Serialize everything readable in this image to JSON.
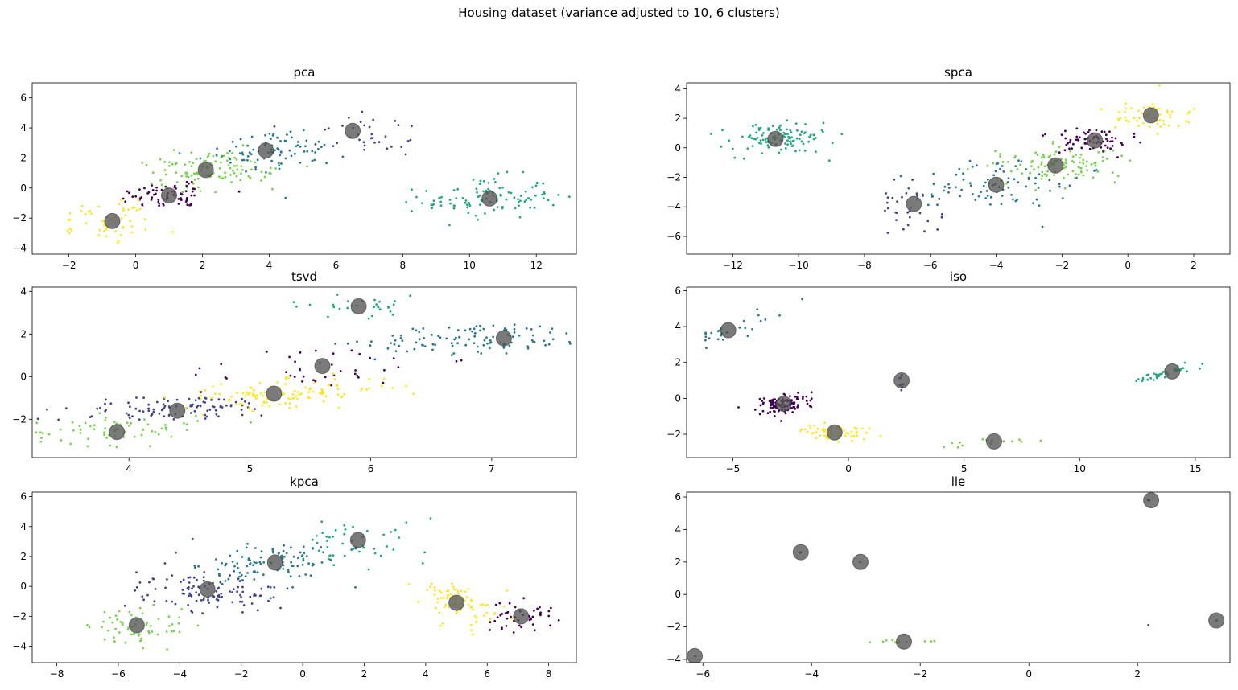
{
  "figure": {
    "suptitle": "Housing dataset (variance adjusted to 10, 6 clusters)"
  },
  "colors": {
    "c0": "#440154",
    "c1": "#414487",
    "c2": "#2a788e",
    "c3": "#22a884",
    "c4": "#7ad151",
    "c5": "#fde725",
    "centroid": "#555555"
  },
  "chart_data": [
    {
      "type": "scatter",
      "title": "pca",
      "xlim": [
        -3.1,
        13.2
      ],
      "ylim": [
        -4.4,
        7.0
      ],
      "xticks": [
        -2,
        0,
        2,
        4,
        6,
        8,
        10,
        12
      ],
      "yticks": [
        -4,
        -2,
        0,
        2,
        4,
        6
      ],
      "clusters": [
        {
          "color": "c0",
          "center": [
            1.0,
            -0.5
          ],
          "spread": [
            0.75,
            0.45
          ],
          "n": 70,
          "rot": 0.4
        },
        {
          "color": "c1",
          "center": [
            6.8,
            3.6
          ],
          "spread": [
            0.9,
            0.9
          ],
          "n": 35,
          "rot": 0.3
        },
        {
          "color": "c2",
          "center": [
            4.2,
            2.5
          ],
          "spread": [
            1.1,
            0.7
          ],
          "n": 85,
          "rot": 0.45
        },
        {
          "color": "c3",
          "center": [
            10.6,
            -0.7
          ],
          "spread": [
            1.0,
            0.7
          ],
          "n": 110,
          "rot": 0.15
        },
        {
          "color": "c4",
          "center": [
            2.2,
            1.2
          ],
          "spread": [
            1.0,
            0.6
          ],
          "n": 110,
          "rot": 0.45
        },
        {
          "color": "c5",
          "center": [
            -0.7,
            -2.2
          ],
          "spread": [
            0.7,
            0.55
          ],
          "n": 55,
          "rot": 0.4
        }
      ],
      "centroids": [
        [
          1.0,
          -0.5
        ],
        [
          6.5,
          3.8
        ],
        [
          3.9,
          2.5
        ],
        [
          10.6,
          -0.7
        ],
        [
          2.1,
          1.2
        ],
        [
          -0.7,
          -2.2
        ]
      ]
    },
    {
      "type": "scatter",
      "title": "spca",
      "xlim": [
        -13.4,
        3.1
      ],
      "ylim": [
        -7.2,
        4.4
      ],
      "xticks": [
        -12,
        -10,
        -8,
        -6,
        -4,
        -2,
        0,
        2
      ],
      "yticks": [
        -6,
        -4,
        -2,
        0,
        2,
        4
      ],
      "clusters": [
        {
          "color": "c0",
          "center": [
            -1.0,
            0.5
          ],
          "spread": [
            0.7,
            0.45
          ],
          "n": 70,
          "rot": 0.4
        },
        {
          "color": "c1",
          "center": [
            -6.6,
            -4.0
          ],
          "spread": [
            0.45,
            0.9
          ],
          "n": 35,
          "rot": 0.1
        },
        {
          "color": "c2",
          "center": [
            -4.0,
            -2.4
          ],
          "spread": [
            1.1,
            0.8
          ],
          "n": 85,
          "rot": 0.45
        },
        {
          "color": "c3",
          "center": [
            -10.6,
            0.6
          ],
          "spread": [
            0.8,
            0.55
          ],
          "n": 110,
          "rot": 0.2
        },
        {
          "color": "c4",
          "center": [
            -2.2,
            -1.2
          ],
          "spread": [
            1.0,
            0.6
          ],
          "n": 110,
          "rot": 0.45
        },
        {
          "color": "c5",
          "center": [
            0.8,
            2.2
          ],
          "spread": [
            0.6,
            0.55
          ],
          "n": 55,
          "rot": 0.3
        }
      ],
      "centroids": [
        [
          -1.0,
          0.5
        ],
        [
          -6.5,
          -3.8
        ],
        [
          -4.0,
          -2.5
        ],
        [
          -10.7,
          0.6
        ],
        [
          -2.2,
          -1.2
        ],
        [
          0.7,
          2.2
        ]
      ]
    },
    {
      "type": "scatter",
      "title": "tsvd",
      "xlim": [
        3.2,
        7.7
      ],
      "ylim": [
        -3.8,
        4.2
      ],
      "xticks": [
        4,
        5,
        6,
        7
      ],
      "yticks": [
        -2,
        0,
        2,
        4
      ],
      "clusters": [
        {
          "color": "c0",
          "center": [
            5.5,
            0.4
          ],
          "spread": [
            0.55,
            0.5
          ],
          "n": 40,
          "rot": 0.2
        },
        {
          "color": "c1",
          "center": [
            4.4,
            -1.5
          ],
          "spread": [
            0.45,
            0.3
          ],
          "n": 100,
          "rot": 0.2
        },
        {
          "color": "c2",
          "center": [
            6.9,
            1.8
          ],
          "spread": [
            0.45,
            0.35
          ],
          "n": 110,
          "rot": 0.1
        },
        {
          "color": "c3",
          "center": [
            5.9,
            3.3
          ],
          "spread": [
            0.3,
            0.25
          ],
          "n": 30,
          "rot": 0.0
        },
        {
          "color": "c4",
          "center": [
            3.9,
            -2.5
          ],
          "spread": [
            0.35,
            0.35
          ],
          "n": 70,
          "rot": 0.1
        },
        {
          "color": "c5",
          "center": [
            5.3,
            -0.8
          ],
          "spread": [
            0.45,
            0.3
          ],
          "n": 110,
          "rot": 0.2
        }
      ],
      "centroids": [
        [
          5.6,
          0.5
        ],
        [
          4.4,
          -1.6
        ],
        [
          7.1,
          1.8
        ],
        [
          5.9,
          3.3
        ],
        [
          3.9,
          -2.6
        ],
        [
          5.2,
          -0.8
        ]
      ]
    },
    {
      "type": "scatter",
      "title": "iso",
      "xlim": [
        -7.0,
        16.5
      ],
      "ylim": [
        -3.3,
        6.2
      ],
      "xticks": [
        -5,
        0,
        5,
        10,
        15
      ],
      "yticks": [
        -2,
        0,
        2,
        4,
        6
      ],
      "clusters": [
        {
          "color": "c0",
          "center": [
            -2.8,
            -0.3
          ],
          "spread": [
            0.5,
            0.3
          ],
          "n": 120,
          "rot": -0.5
        },
        {
          "color": "c1",
          "center": [
            2.3,
            1.0
          ],
          "spread": [
            0.05,
            0.25
          ],
          "n": 10,
          "rot": 0.0
        },
        {
          "color": "c2",
          "center": [
            -5.2,
            3.8
          ],
          "spread": [
            0.4,
            0.9
          ],
          "n": 30,
          "rot": -0.6
        },
        {
          "color": "c3",
          "center": [
            13.8,
            1.4
          ],
          "spread": [
            1.0,
            0.1
          ],
          "n": 40,
          "rot": 0.7
        },
        {
          "color": "c4",
          "center": [
            6.3,
            -2.4
          ],
          "spread": [
            1.4,
            0.1
          ],
          "n": 15,
          "rot": 0.1
        },
        {
          "color": "c5",
          "center": [
            -0.6,
            -1.9
          ],
          "spread": [
            0.8,
            0.2
          ],
          "n": 60,
          "rot": -0.25
        }
      ],
      "centroids": [
        [
          -2.8,
          -0.3
        ],
        [
          2.3,
          1.0
        ],
        [
          -5.2,
          3.8
        ],
        [
          14.0,
          1.5
        ],
        [
          6.3,
          -2.4
        ],
        [
          -0.6,
          -1.9
        ]
      ]
    },
    {
      "type": "scatter",
      "title": "kpca",
      "xlim": [
        -8.8,
        8.9
      ],
      "ylim": [
        -5.1,
        6.3
      ],
      "xticks": [
        -8,
        -6,
        -4,
        -2,
        0,
        2,
        4,
        6,
        8
      ],
      "yticks": [
        -4,
        -2,
        0,
        2,
        4,
        6
      ],
      "clusters": [
        {
          "color": "c0",
          "center": [
            7.0,
            -2.0
          ],
          "spread": [
            0.6,
            0.5
          ],
          "n": 45,
          "rot": 0.1
        },
        {
          "color": "c1",
          "center": [
            -3.2,
            -0.3
          ],
          "spread": [
            1.0,
            0.7
          ],
          "n": 110,
          "rot": 0.45
        },
        {
          "color": "c2",
          "center": [
            -1.0,
            1.5
          ],
          "spread": [
            1.2,
            0.8
          ],
          "n": 110,
          "rot": 0.4
        },
        {
          "color": "c3",
          "center": [
            1.9,
            3.0
          ],
          "spread": [
            1.0,
            0.9
          ],
          "n": 45,
          "rot": 0.3
        },
        {
          "color": "c4",
          "center": [
            -5.4,
            -2.6
          ],
          "spread": [
            0.8,
            0.6
          ],
          "n": 60,
          "rot": 0.35
        },
        {
          "color": "c5",
          "center": [
            5.0,
            -1.1
          ],
          "spread": [
            0.7,
            0.8
          ],
          "n": 80,
          "rot": 0.3
        }
      ],
      "centroids": [
        [
          7.1,
          -2.0
        ],
        [
          -3.1,
          -0.2
        ],
        [
          -0.9,
          1.6
        ],
        [
          1.8,
          3.1
        ],
        [
          -5.4,
          -2.6
        ],
        [
          5.0,
          -1.1
        ]
      ]
    },
    {
      "type": "scatter",
      "title": "lle",
      "xlim": [
        -6.3,
        3.7
      ],
      "ylim": [
        -4.2,
        6.3
      ],
      "xticks": [
        -6,
        -4,
        -2,
        0,
        2
      ],
      "yticks": [
        -4,
        -2,
        0,
        2,
        4,
        6
      ],
      "clusters": [
        {
          "color": "c0",
          "center": [
            2.2,
            5.8
          ],
          "spread": [
            0.01,
            0.01
          ],
          "n": 3,
          "rot": 0.0
        },
        {
          "color": "c1",
          "center": [
            2.2,
            -1.9
          ],
          "spread": [
            0.01,
            0.01
          ],
          "n": 1,
          "rot": 0.0
        },
        {
          "color": "c2",
          "center": [
            3.45,
            -1.6
          ],
          "spread": [
            0.01,
            0.01
          ],
          "n": 3,
          "rot": 0.0
        },
        {
          "color": "c3",
          "center": [
            -6.15,
            -3.8
          ],
          "spread": [
            0.01,
            0.01
          ],
          "n": 3,
          "rot": 0.0
        },
        {
          "color": "c4",
          "center": [
            -2.2,
            -2.9
          ],
          "spread": [
            0.35,
            0.05
          ],
          "n": 12,
          "rot": 0.0
        },
        {
          "color": "c1",
          "center": [
            -4.2,
            2.6
          ],
          "spread": [
            0.01,
            0.01
          ],
          "n": 2,
          "rot": 0.0
        },
        {
          "color": "c2",
          "center": [
            -3.1,
            2.0
          ],
          "spread": [
            0.01,
            0.01
          ],
          "n": 2,
          "rot": 0.0
        }
      ],
      "centroids": [
        [
          2.25,
          5.8
        ],
        [
          3.45,
          -1.6
        ],
        [
          -6.15,
          -3.8
        ],
        [
          -2.3,
          -2.9
        ],
        [
          -4.2,
          2.6
        ],
        [
          -3.1,
          2.0
        ]
      ]
    }
  ]
}
